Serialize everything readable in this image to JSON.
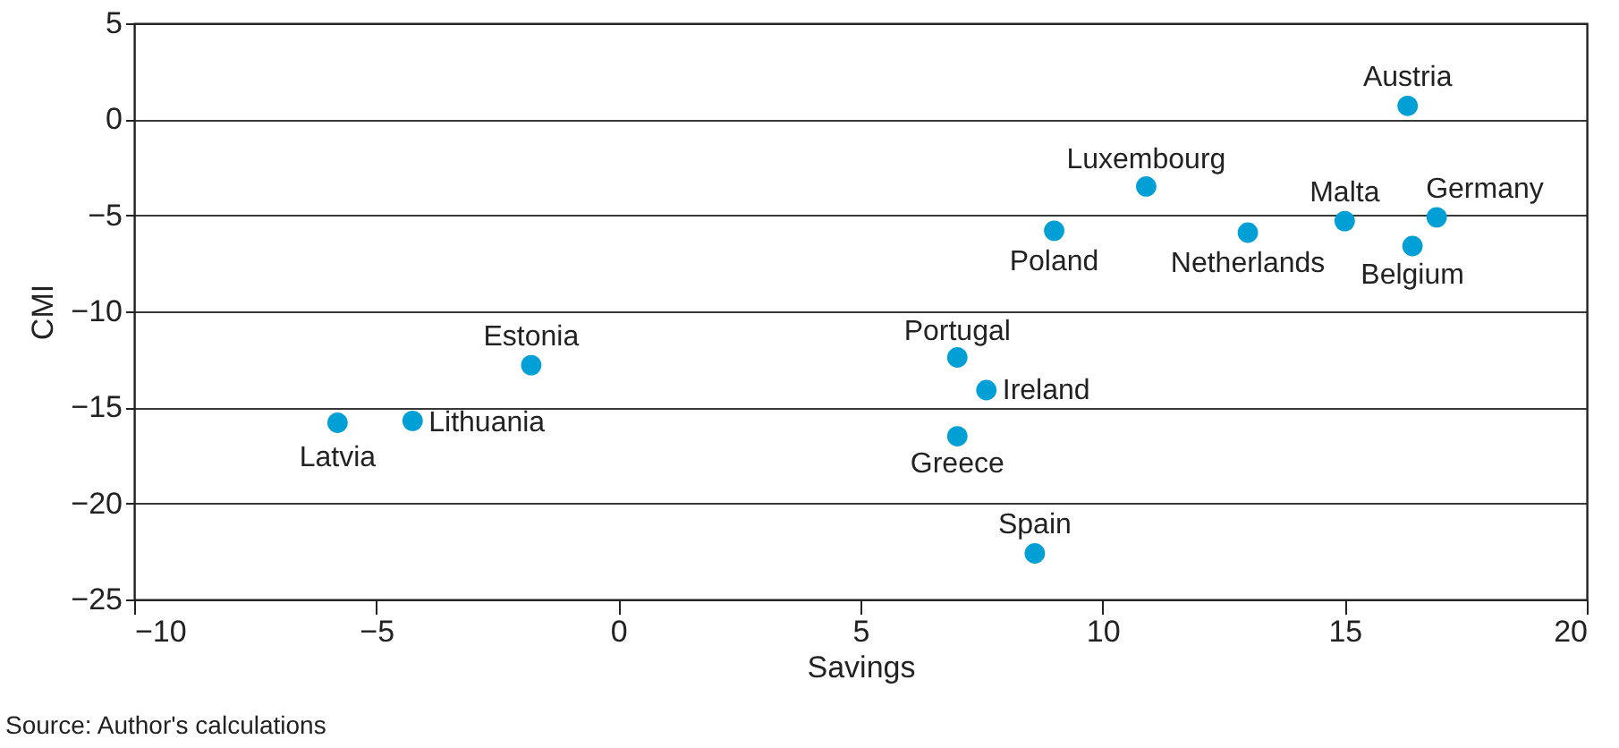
{
  "chart_data": {
    "type": "scatter",
    "xlabel": "Savings",
    "ylabel": "CMI",
    "x": [
      -5.8,
      -4.25,
      -1.8,
      7.0,
      7.6,
      7.0,
      8.6,
      9.0,
      10.9,
      13.0,
      15.0,
      16.9,
      16.4,
      16.3
    ],
    "series": [
      {
        "color": "#00a0d6",
        "values": [
          -15.8,
          -15.7,
          -12.8,
          -12.4,
          -14.1,
          -16.5,
          -22.6,
          -5.8,
          -3.5,
          -5.9,
          -5.3,
          -5.1,
          -6.6,
          0.7
        ]
      }
    ],
    "xlim": [
      -10,
      20
    ],
    "xticks": [
      -10,
      -5,
      0,
      5,
      10,
      15,
      20
    ],
    "ylim": [
      -25,
      5
    ],
    "yticks": [
      -25,
      -20,
      -15,
      -10,
      -5,
      0,
      5
    ],
    "grid": "y",
    "marker": "circle",
    "annotations": [
      {
        "text": "Latvia",
        "x": -5.8,
        "y": -15.8
      },
      {
        "text": "Lithuania",
        "x": -4.25,
        "y": -15.7
      },
      {
        "text": "Estonia",
        "x": -1.8,
        "y": -12.8
      },
      {
        "text": "Portugal",
        "x": 7.0,
        "y": -12.4
      },
      {
        "text": "Ireland",
        "x": 7.6,
        "y": -14.1
      },
      {
        "text": "Greece",
        "x": 7.0,
        "y": -16.5
      },
      {
        "text": "Spain",
        "x": 8.6,
        "y": -22.6
      },
      {
        "text": "Poland",
        "x": 9.0,
        "y": -5.8
      },
      {
        "text": "Luxembourg",
        "x": 10.9,
        "y": -3.5
      },
      {
        "text": "Netherlands",
        "x": 13.0,
        "y": -5.9
      },
      {
        "text": "Malta",
        "x": 15.0,
        "y": -5.3
      },
      {
        "text": "Germany",
        "x": 16.9,
        "y": -5.1
      },
      {
        "text": "Belgium",
        "x": 16.4,
        "y": -6.6
      },
      {
        "text": "Austria",
        "x": 16.3,
        "y": 0.7
      },
      "Source: Author's calculations"
    ]
  }
}
